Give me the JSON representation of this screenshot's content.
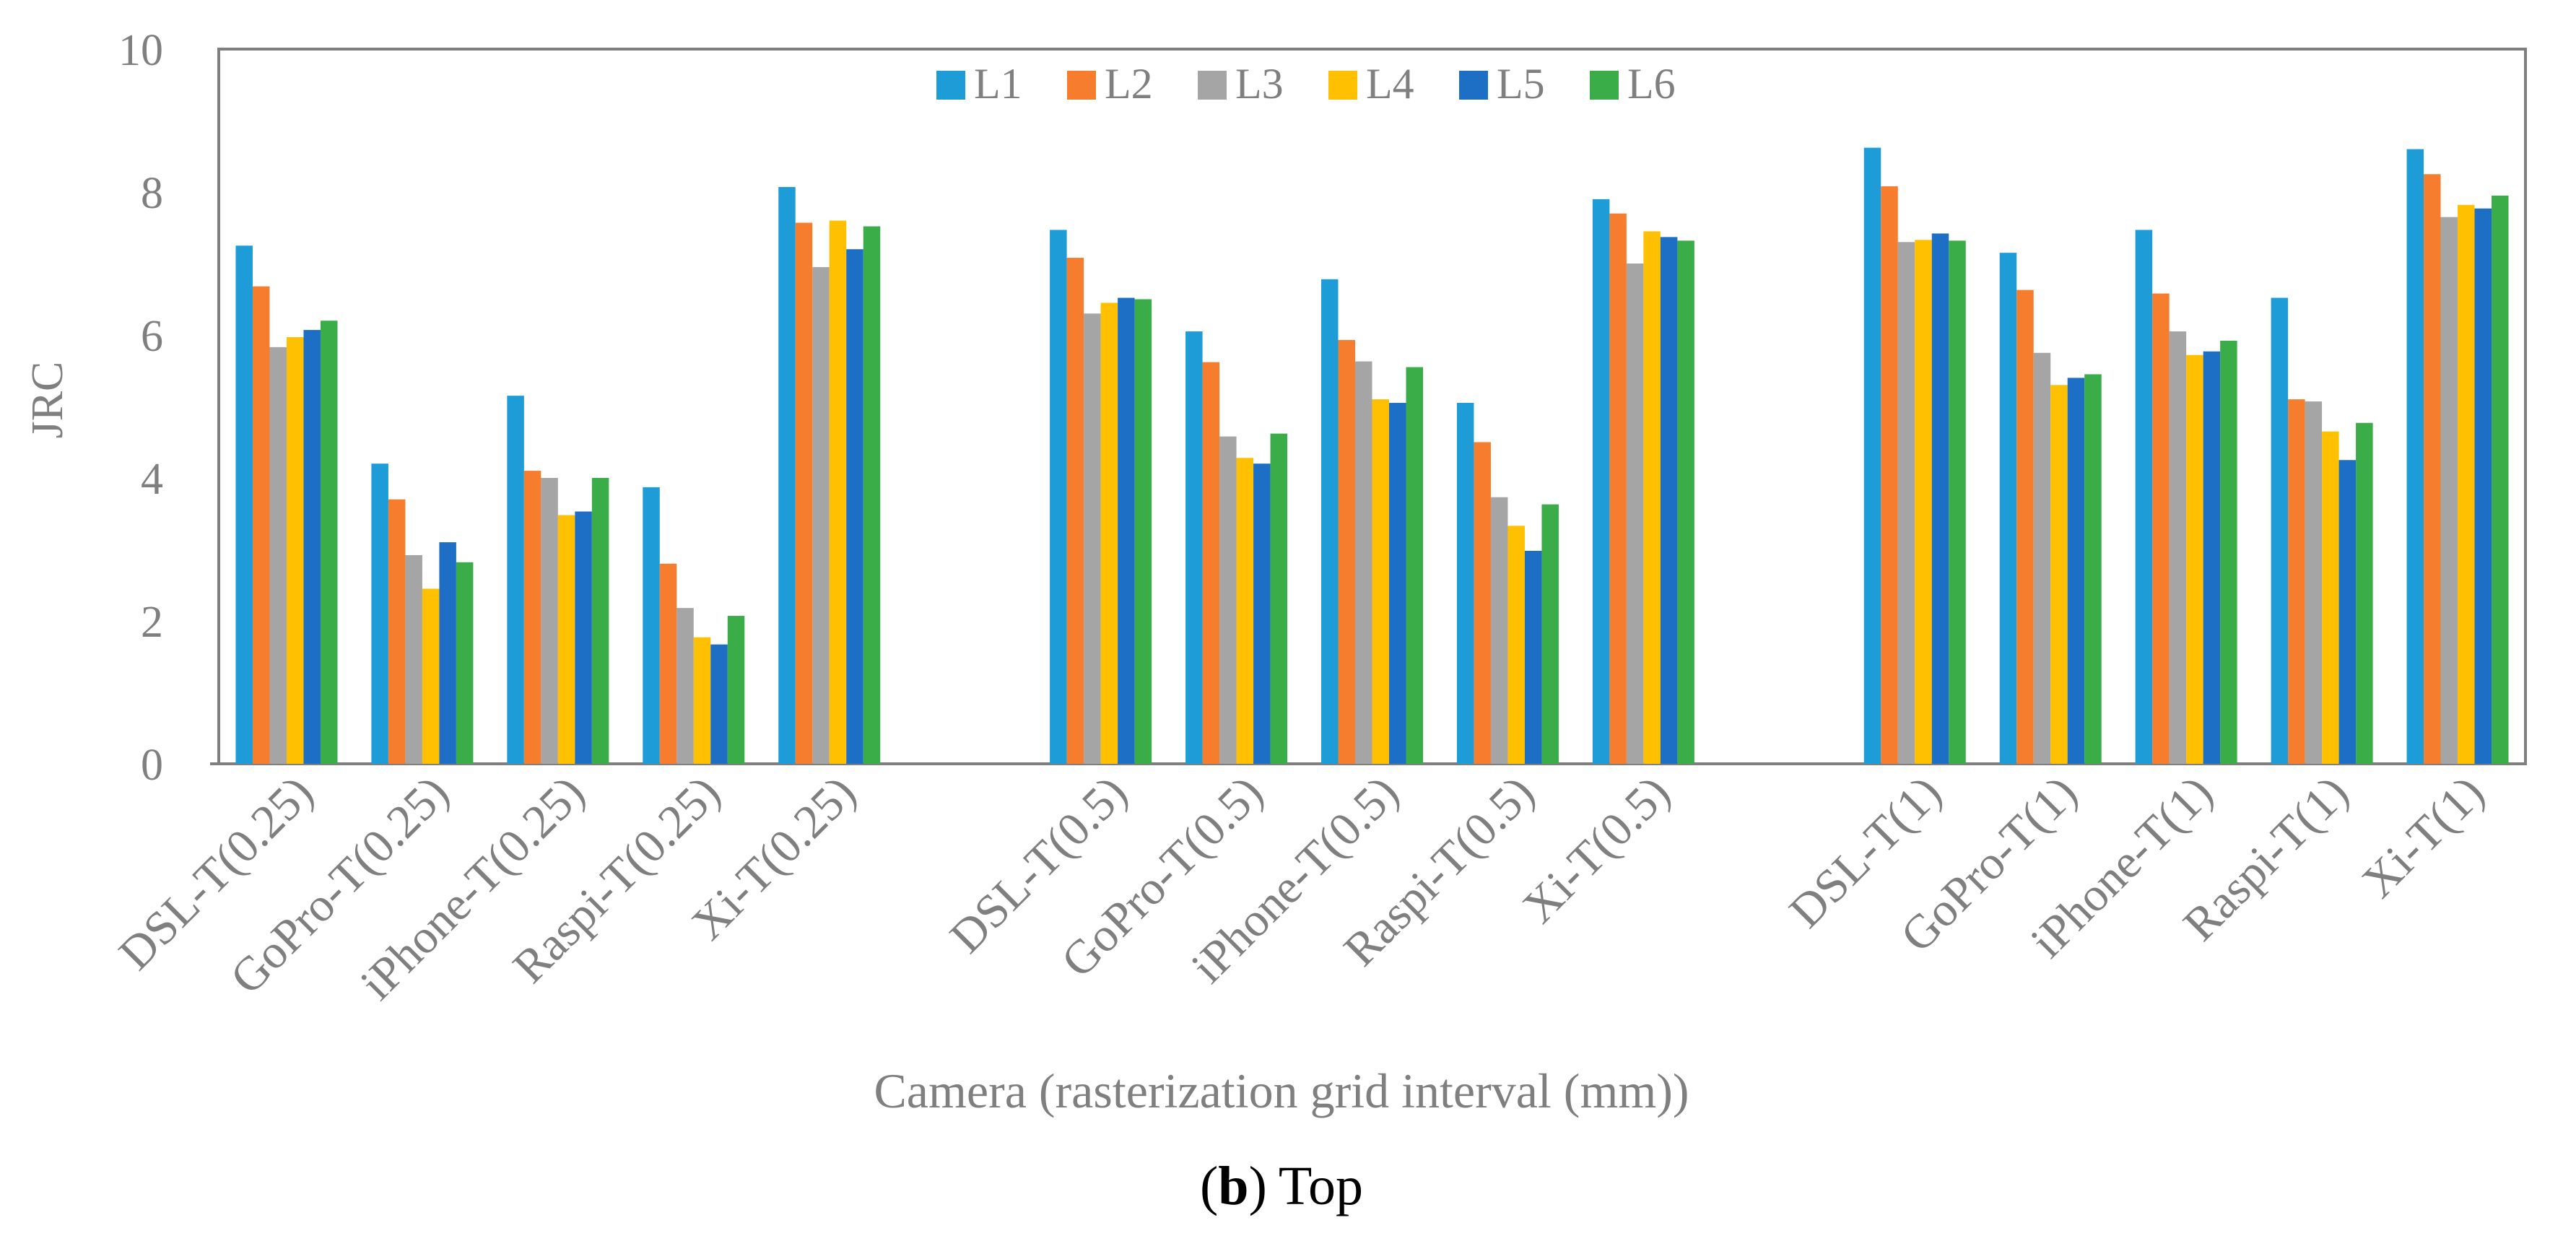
{
  "chart_data": {
    "type": "bar",
    "title": "",
    "xlabel": "Camera (rasterization grid interval (mm))",
    "ylabel": "JRC",
    "ylim": [
      0,
      10
    ],
    "yticks": [
      "0",
      "2",
      "4",
      "6",
      "8",
      "10"
    ],
    "legend_position": "top-center",
    "grid": false,
    "categories": [
      "DSL-T(0.25)",
      "GoPro-T(0.25)",
      "iPhone-T(0.25)",
      "Raspi-T(0.25)",
      "Xi-T(0.25)",
      "",
      "DSL-T(0.5)",
      "GoPro-T(0.5)",
      "iPhone-T(0.5)",
      "Raspi-T(0.5)",
      "Xi-T(0.5)",
      "",
      "DSL-T(1)",
      "GoPro-T(1)",
      "iPhone-T(1)",
      "Raspi-T(1)",
      "Xi-T(1)"
    ],
    "series": [
      {
        "name": "L1",
        "color": "#1e9cd7",
        "values": [
          7.25,
          4.2,
          5.15,
          3.87,
          8.07,
          null,
          7.47,
          6.05,
          6.78,
          5.05,
          7.9,
          null,
          8.62,
          7.15,
          7.47,
          6.52,
          8.6
        ]
      },
      {
        "name": "L2",
        "color": "#f57d2d",
        "values": [
          6.68,
          3.7,
          4.1,
          2.8,
          7.57,
          null,
          7.08,
          5.62,
          5.93,
          4.5,
          7.7,
          null,
          8.08,
          6.63,
          6.58,
          5.1,
          8.25
        ]
      },
      {
        "name": "L3",
        "color": "#a5a5a5",
        "values": [
          5.83,
          2.92,
          4.0,
          2.18,
          6.95,
          null,
          6.3,
          4.58,
          5.63,
          3.73,
          7.0,
          null,
          7.3,
          5.75,
          6.05,
          5.07,
          7.65
        ]
      },
      {
        "name": "L4",
        "color": "#fec000",
        "values": [
          5.97,
          2.45,
          3.48,
          1.77,
          7.6,
          null,
          6.45,
          4.28,
          5.1,
          3.33,
          7.45,
          null,
          7.33,
          5.3,
          5.72,
          4.65,
          7.82
        ]
      },
      {
        "name": "L5",
        "color": "#1d6fc5",
        "values": [
          6.07,
          3.1,
          3.53,
          1.67,
          7.2,
          null,
          6.52,
          4.2,
          5.05,
          2.98,
          7.37,
          null,
          7.42,
          5.4,
          5.77,
          4.25,
          7.77
        ]
      },
      {
        "name": "L6",
        "color": "#3bad48",
        "values": [
          6.2,
          2.82,
          4.0,
          2.07,
          7.52,
          null,
          6.5,
          4.62,
          5.55,
          3.63,
          7.32,
          null,
          7.32,
          5.45,
          5.92,
          4.77,
          7.95
        ]
      }
    ]
  },
  "caption": {
    "bold": "b",
    "open": "(",
    "close": ")",
    "text": "Top"
  }
}
